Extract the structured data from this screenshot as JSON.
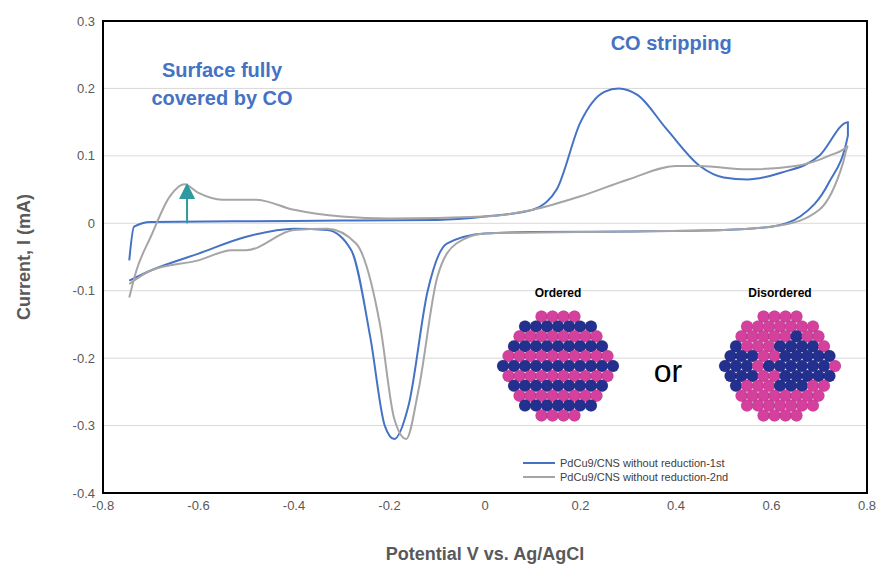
{
  "chart_data": {
    "type": "line",
    "x_label": "Potential V vs. Ag/AgCl",
    "y_label": "Current, I (mA)",
    "xlim": [
      -0.8,
      0.8
    ],
    "xticks": [
      -0.8,
      -0.6,
      -0.4,
      -0.2,
      0,
      0.2,
      0.4,
      0.6,
      0.8
    ],
    "ylim": [
      -0.4,
      0.3
    ],
    "yticks": [
      -0.4,
      -0.3,
      -0.2,
      -0.1,
      0,
      0.1,
      0.2,
      0.3
    ],
    "grid": true,
    "legend": "lower right",
    "annotations": [
      "CO stripping",
      "Surface fully covered by CO"
    ],
    "inset_labels": [
      "Ordered",
      "or",
      "Disordered"
    ],
    "series": [
      {
        "name": "PdCu9/CNS without reduction-1st",
        "color": "#4472c4",
        "x": [
          -0.745,
          -0.735,
          -0.7,
          -0.5,
          -0.3,
          -0.1,
          0,
          0.1,
          0.15,
          0.2,
          0.25,
          0.28,
          0.32,
          0.38,
          0.45,
          0.5,
          0.55,
          0.62,
          0.7,
          0.76,
          0.76,
          0.72,
          0.66,
          0.6,
          0.5,
          0.3,
          0.1,
          0,
          -0.08,
          -0.12,
          -0.16,
          -0.19,
          -0.21,
          -0.24,
          -0.28,
          -0.33,
          -0.4,
          -0.5,
          -0.6,
          -0.7,
          -0.745
        ],
        "values": [
          -0.055,
          -0.005,
          0.002,
          0.003,
          0.004,
          0.005,
          0.01,
          0.02,
          0.05,
          0.15,
          0.195,
          0.2,
          0.19,
          0.14,
          0.085,
          0.068,
          0.065,
          0.075,
          0.1,
          0.15,
          0.13,
          0.06,
          0.01,
          -0.005,
          -0.01,
          -0.012,
          -0.013,
          -0.015,
          -0.03,
          -0.1,
          -0.27,
          -0.32,
          -0.3,
          -0.17,
          -0.04,
          -0.01,
          -0.008,
          -0.02,
          -0.045,
          -0.07,
          -0.085
        ]
      },
      {
        "name": "PdCu9/CNS without reduction-2nd",
        "color": "#a5a5a5",
        "x": [
          -0.745,
          -0.73,
          -0.7,
          -0.66,
          -0.63,
          -0.6,
          -0.55,
          -0.48,
          -0.4,
          -0.3,
          -0.2,
          0,
          0.1,
          0.2,
          0.3,
          0.4,
          0.45,
          0.55,
          0.65,
          0.72,
          0.76,
          0.75,
          0.7,
          0.62,
          0.5,
          0.3,
          0,
          -0.06,
          -0.1,
          -0.14,
          -0.165,
          -0.19,
          -0.22,
          -0.27,
          -0.33,
          -0.4,
          -0.5,
          -0.53,
          -0.6,
          -0.7,
          -0.745
        ],
        "values": [
          -0.11,
          -0.07,
          -0.02,
          0.04,
          0.058,
          0.045,
          0.035,
          0.035,
          0.02,
          0.01,
          0.007,
          0.01,
          0.02,
          0.04,
          0.065,
          0.085,
          0.085,
          0.08,
          0.085,
          0.1,
          0.115,
          0.09,
          0.02,
          -0.003,
          -0.01,
          -0.012,
          -0.015,
          -0.03,
          -0.08,
          -0.25,
          -0.32,
          -0.29,
          -0.15,
          -0.03,
          -0.008,
          -0.01,
          -0.04,
          -0.04,
          -0.055,
          -0.07,
          -0.09
        ]
      }
    ]
  }
}
